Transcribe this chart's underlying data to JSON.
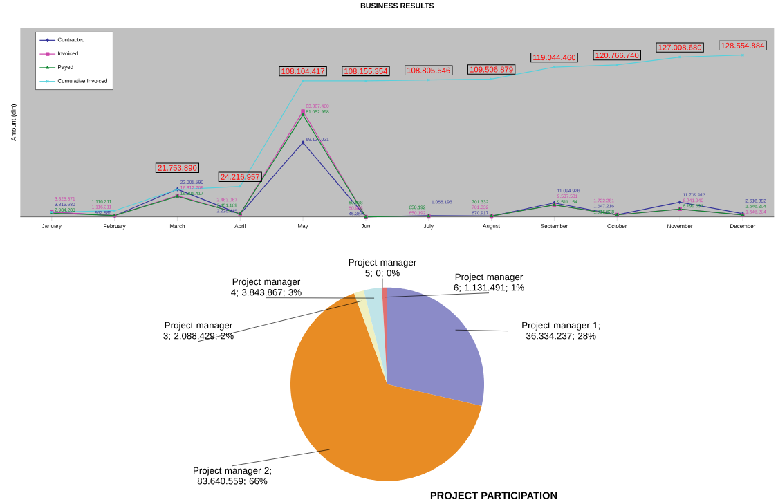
{
  "chart_data": [
    {
      "type": "line",
      "title": "BUSINESS RESULTS",
      "ylim": [
        0,
        150000000
      ],
      "ylabel": "Amount (din)",
      "legend": "top left",
      "tick_labels": "x",
      "categories": [
        "January",
        "February",
        "March",
        "April",
        "May",
        "Jun",
        "July",
        "August",
        "September",
        "October",
        "November",
        "December"
      ],
      "series": [
        {
          "name": "Contracted",
          "color": "#33339a",
          "marker": "diamond",
          "values": [
            3816680,
            952985,
            22005590,
            2228415,
            59127021,
            45384,
            1055196,
            670917,
            11094926,
            1647216,
            11709913,
            2616392
          ],
          "value_labels": [
            "3.816.680",
            "952.985",
            "22.005.590",
            "2.228.415",
            "59.127.021",
            "45.384",
            "1.055.196",
            "670.917",
            "11.094.926",
            "1.647.216",
            "11.709.913",
            "2.616.392"
          ]
        },
        {
          "name": "Invoiced",
          "color": "#cc44aa",
          "marker": "square",
          "values": [
            3825371,
            1116311,
            16812209,
            2463067,
            83887460,
            50938,
            650192,
            701332,
            9537581,
            1722281,
            6241940,
            1546204
          ],
          "value_labels": [
            "3.825.371",
            "1.116.311",
            "16.812.209",
            "2.463.067",
            "83.887.460",
            "50.938",
            "650.192",
            "701.332",
            "9.537.581",
            "1.722.281",
            "6.241.940",
            "1.546.204"
          ]
        },
        {
          "name": "Payed",
          "color": "#118833",
          "marker": "triangle",
          "values": [
            2984280,
            1116311,
            16305417,
            2451109,
            81052998,
            50938,
            650192,
            701332,
            9511154,
            1616628,
            6199691,
            1546204
          ],
          "value_labels": [
            "2.984.280",
            "1.116.311",
            "16.305.417",
            "2.451.109",
            "81.052.998",
            "50.938",
            "650.192",
            "701.332",
            "9.511.154",
            "1.616.628",
            "6.199.691",
            "1.546.204"
          ]
        },
        {
          "name": "Cumulative Invoiced",
          "color": "#55d0dc",
          "marker": "cross",
          "values": [
            3825371,
            4941682,
            21753890,
            24216957,
            108104417,
            108155354,
            108805546,
            109506879,
            119044460,
            120766740,
            127008680,
            128554884
          ],
          "value_labels": [
            null,
            null,
            "21.753.890",
            "24.216.957",
            "108.104.417",
            "108.155.354",
            "108.805.546",
            "109.506.879",
            "119.044.460",
            "120.766.740",
            "127.008.680",
            "128.554.884"
          ]
        }
      ]
    },
    {
      "type": "pie",
      "title": "PROJECT PARTICIPATION",
      "categories": [
        "Project manager 1",
        "Project manager 2",
        "Project manager 3",
        "Project manager 4",
        "Project manager 5",
        "Project manager 6"
      ],
      "values": [
        36334237,
        83640559,
        2088429,
        3843867,
        0,
        1131491
      ],
      "value_labels": [
        "; 36.334.237; 28%",
        "; 83.640.559; 66%",
        "; 2.088.429; 2%",
        "; 3.843.867; 3%",
        "; 0; 0%",
        "; 1.131.491; 1%"
      ],
      "colors": [
        "#8b8bc8",
        "#e88c24",
        "#f0f0c0",
        "#c0e4e8",
        "#909090",
        "#e07070"
      ]
    }
  ]
}
